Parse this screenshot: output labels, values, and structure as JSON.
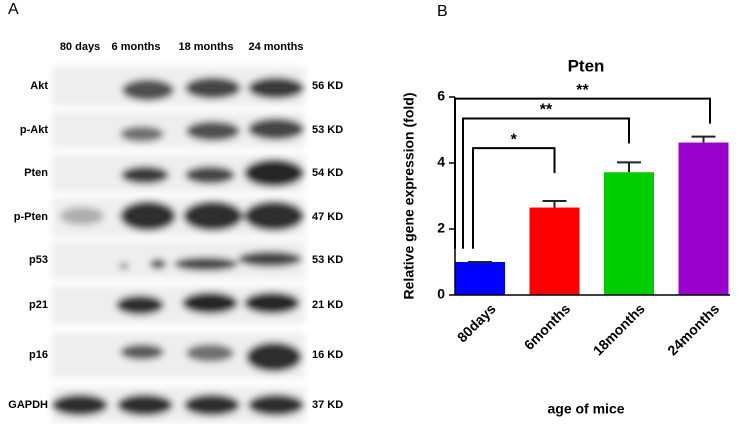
{
  "panel_a": {
    "label": "A",
    "columns": [
      "80 days",
      "6 months",
      "18 months",
      "24 months"
    ],
    "rows": [
      {
        "protein": "Akt",
        "size": "56 KD"
      },
      {
        "protein": "p-Akt",
        "size": "53 KD"
      },
      {
        "protein": "Pten",
        "size": "54 KD"
      },
      {
        "protein": "p-Pten",
        "size": "47 KD"
      },
      {
        "protein": "p53",
        "size": "53 KD"
      },
      {
        "protein": "p21",
        "size": "21 KD"
      },
      {
        "protein": "p16",
        "size": "16 KD"
      },
      {
        "protein": "GAPDH",
        "size": "37 KD"
      }
    ]
  },
  "chart_data": {
    "type": "bar",
    "label": "B",
    "title": "Pten",
    "y_label": "Relative gene expression (fold)",
    "x_label": "age of mice",
    "categories": [
      "80days",
      "6months",
      "18months",
      "24months"
    ],
    "values": [
      1,
      2.65,
      3.72,
      4.62
    ],
    "errors": [
      0,
      0.2,
      0.3,
      0.18
    ],
    "colors": [
      "#0000ff",
      "#ff0000",
      "#00cc00",
      "#9900cc"
    ],
    "ylim": [
      0,
      6
    ],
    "yticks": [
      0,
      2,
      4,
      6
    ],
    "annotations": [
      {
        "text": "*",
        "y": 4.45
      },
      {
        "text": "**",
        "y": 5.35
      },
      {
        "text": "**",
        "y": 5.95
      }
    ]
  }
}
